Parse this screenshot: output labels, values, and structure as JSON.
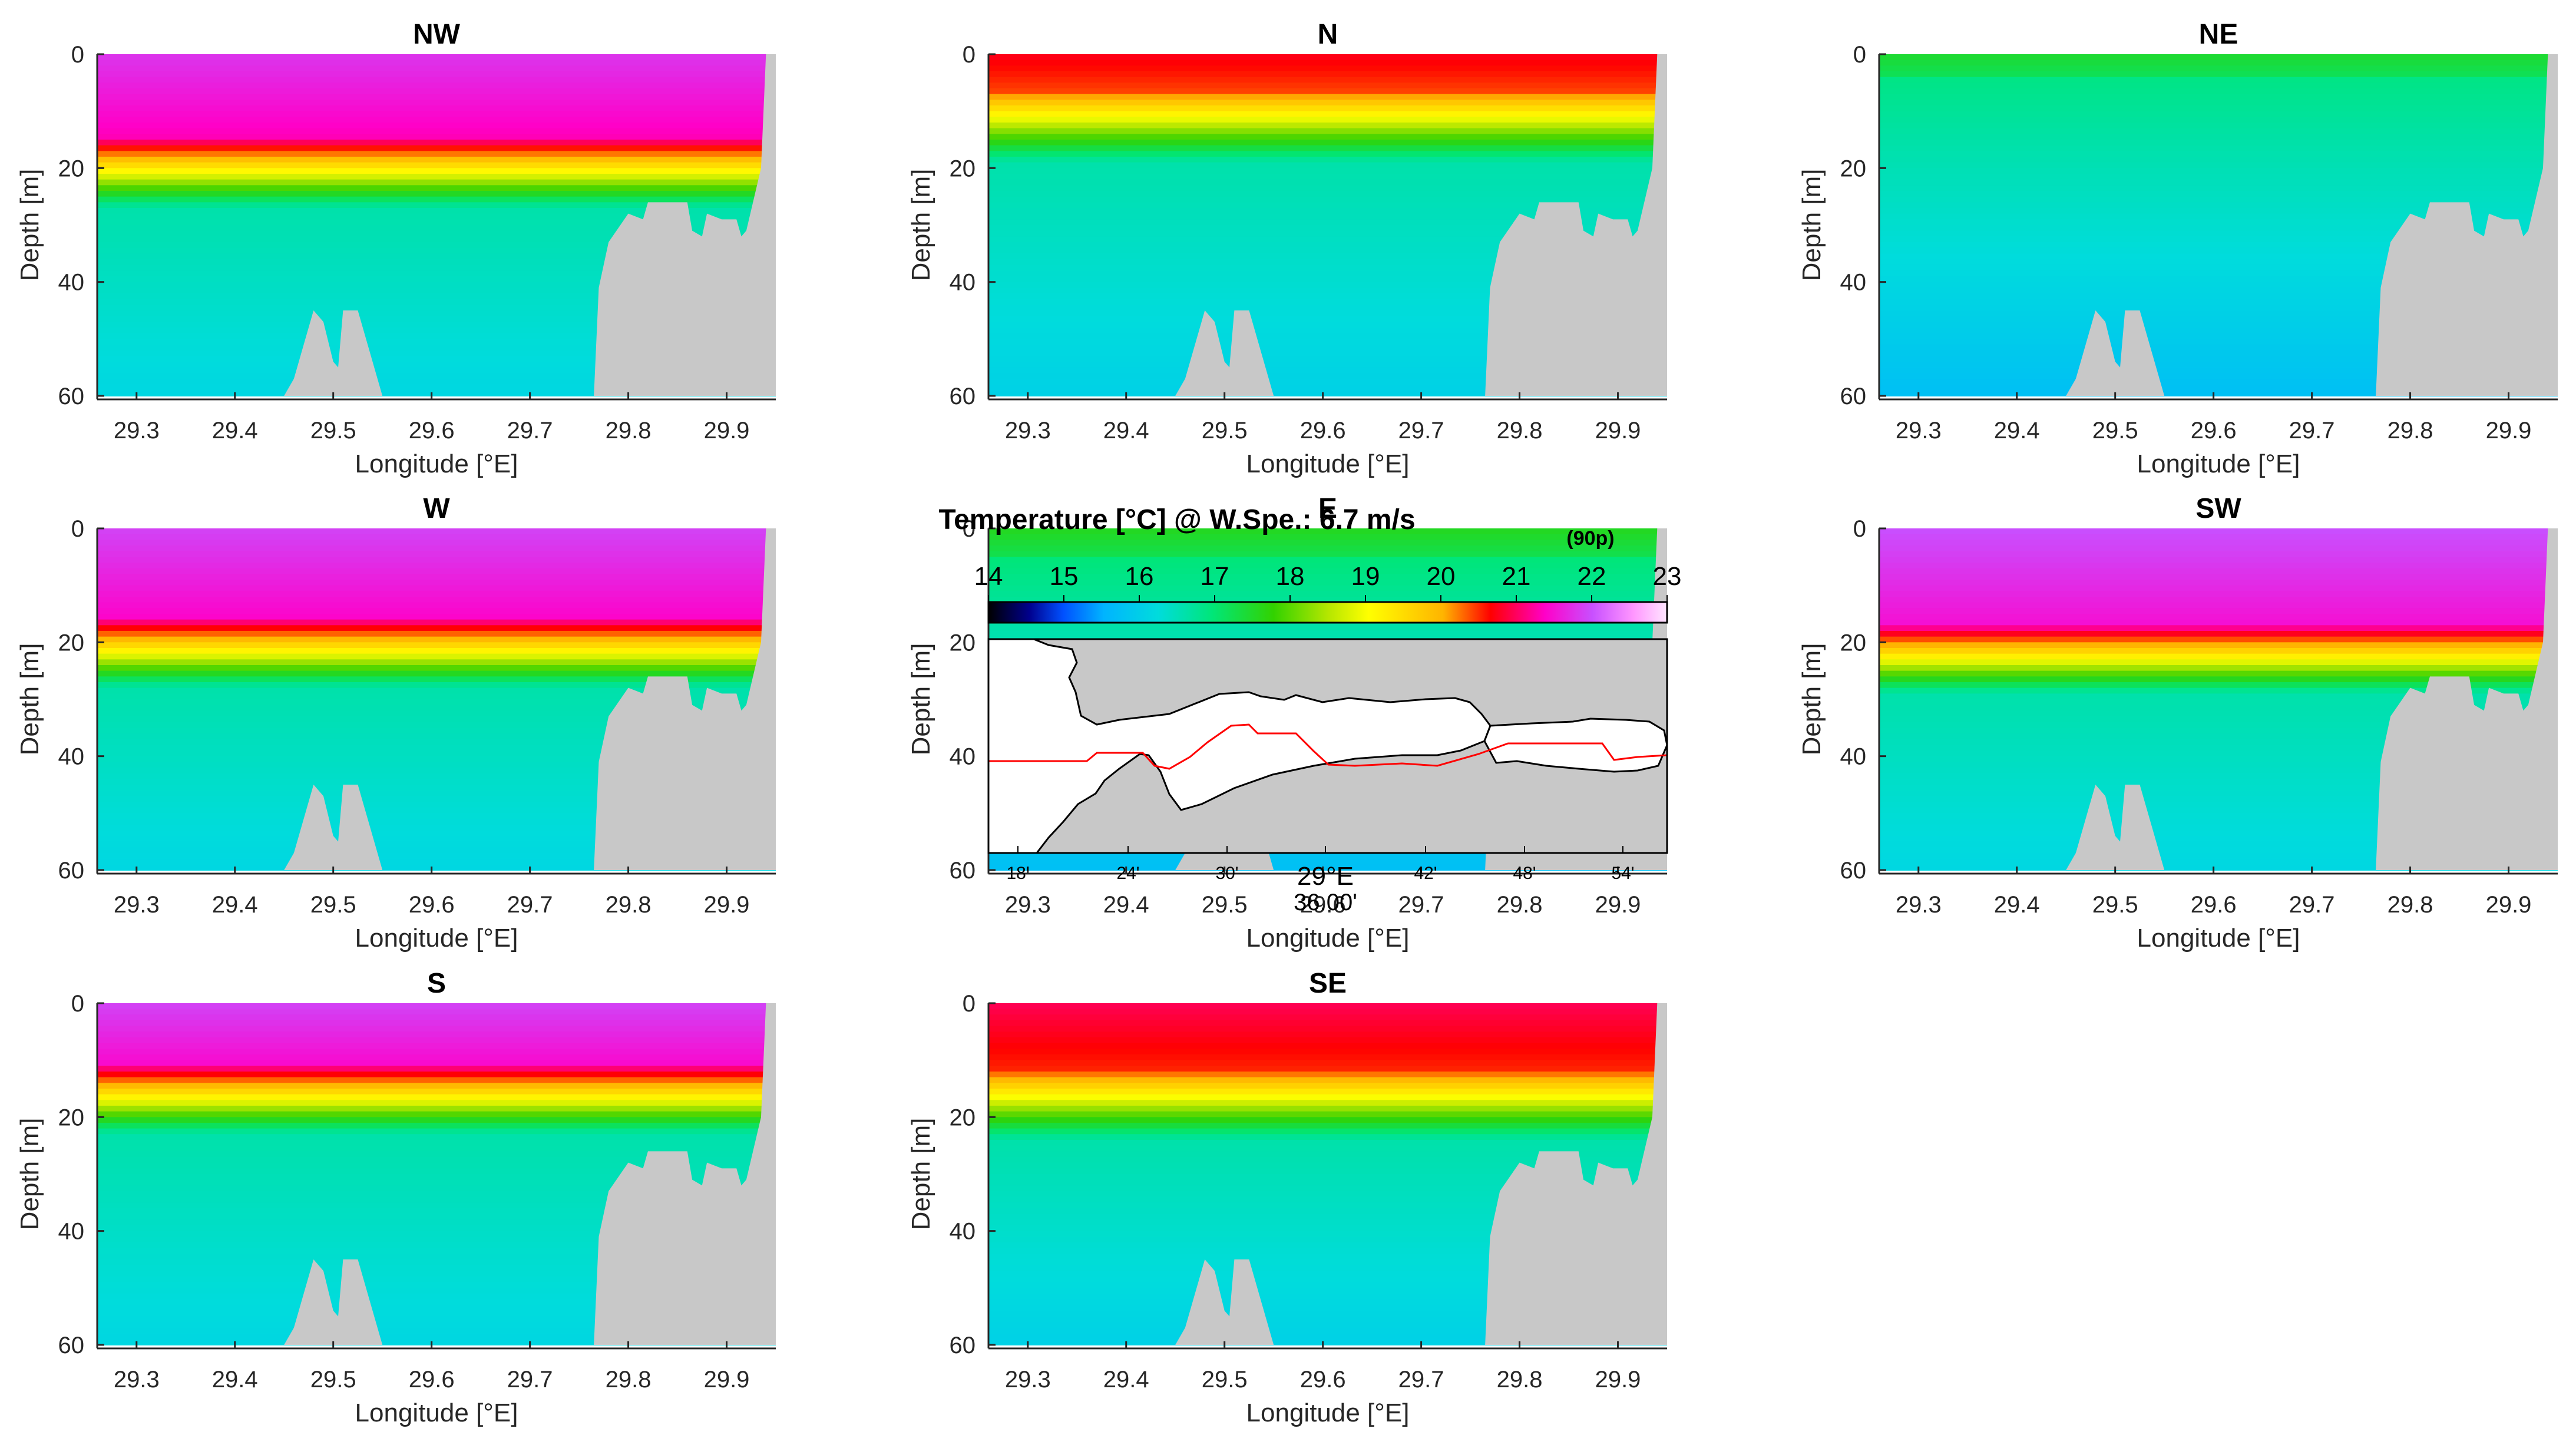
{
  "figure": {
    "colorbar": {
      "title": "Temperature [°C] @ W.Spe.: 6.7 m/s",
      "title_subscript": "(90p)",
      "ticks": [
        "14",
        "15",
        "16",
        "17",
        "18",
        "19",
        "20",
        "21",
        "22",
        "23"
      ],
      "range": [
        14,
        23
      ]
    },
    "map_inset": {
      "x_ticks": [
        "18'",
        "24'",
        "30'",
        "29°E",
        "42'",
        "48'",
        "54'"
      ],
      "x_tick_sub": "36.00'",
      "line_color": "#ff0000",
      "land_color": "#c8c8c8"
    }
  },
  "chart_data": [
    {
      "type": "heatmap",
      "title": "NW",
      "xlabel": "Longitude [°E]",
      "ylabel": "Depth [m]",
      "xlim": [
        29.26,
        29.95
      ],
      "ylim": [
        60,
        0
      ],
      "xticks": [
        "29.3",
        "29.4",
        "29.5",
        "29.6",
        "29.7",
        "29.8",
        "29.9"
      ],
      "yticks": [
        "0",
        "20",
        "40",
        "60"
      ],
      "surface_temp_c": 21.8,
      "thermocline_depth_m": 19,
      "deep_temp_c": 16.1
    },
    {
      "type": "heatmap",
      "title": "N",
      "xlabel": "Longitude [°E]",
      "ylabel": "Depth [m]",
      "xlim": [
        29.26,
        29.95
      ],
      "ylim": [
        60,
        0
      ],
      "xticks": [
        "29.3",
        "29.4",
        "29.5",
        "29.6",
        "29.7",
        "29.8",
        "29.9"
      ],
      "yticks": [
        "0",
        "20",
        "40",
        "60"
      ],
      "surface_temp_c": 20.8,
      "thermocline_depth_m": 11,
      "deep_temp_c": 16.0
    },
    {
      "type": "heatmap",
      "title": "NE",
      "xlabel": "Longitude [°E]",
      "ylabel": "Depth [m]",
      "xlim": [
        29.26,
        29.95
      ],
      "ylim": [
        60,
        0
      ],
      "xticks": [
        "29.3",
        "29.4",
        "29.5",
        "29.6",
        "29.7",
        "29.8",
        "29.9"
      ],
      "yticks": [
        "0",
        "20",
        "40",
        "60"
      ],
      "surface_temp_c": 17.5,
      "thermocline_depth_m": 8,
      "deep_temp_c": 15.7
    },
    {
      "type": "heatmap",
      "title": "W",
      "xlabel": "Longitude [°E]",
      "ylabel": "Depth [m]",
      "xlim": [
        29.26,
        29.95
      ],
      "ylim": [
        60,
        0
      ],
      "xticks": [
        "29.3",
        "29.4",
        "29.5",
        "29.6",
        "29.7",
        "29.8",
        "29.9"
      ],
      "yticks": [
        "0",
        "20",
        "40",
        "60"
      ],
      "surface_temp_c": 21.9,
      "thermocline_depth_m": 20,
      "deep_temp_c": 16.1
    },
    {
      "type": "heatmap",
      "title": "E",
      "xlabel": "Longitude [°E]",
      "ylabel": "Depth [m]",
      "xlim": [
        29.26,
        29.95
      ],
      "ylim": [
        60,
        0
      ],
      "xticks": [
        "29.3",
        "29.4",
        "29.5",
        "29.6",
        "29.7",
        "29.8",
        "29.9"
      ],
      "yticks": [
        "0",
        "20",
        "40",
        "60"
      ],
      "surface_temp_c": 17.6,
      "thermocline_depth_m": 9,
      "deep_temp_c": 15.7
    },
    {
      "type": "heatmap",
      "title": "SW",
      "xlabel": "Longitude [°E]",
      "ylabel": "Depth [m]",
      "xlim": [
        29.26,
        29.95
      ],
      "ylim": [
        60,
        0
      ],
      "xticks": [
        "29.3",
        "29.4",
        "29.5",
        "29.6",
        "29.7",
        "29.8",
        "29.9"
      ],
      "yticks": [
        "0",
        "20",
        "40",
        "60"
      ],
      "surface_temp_c": 22.0,
      "thermocline_depth_m": 21,
      "deep_temp_c": 16.1
    },
    {
      "type": "heatmap",
      "title": "S",
      "xlabel": "Longitude [°E]",
      "ylabel": "Depth [m]",
      "xlim": [
        29.26,
        29.95
      ],
      "ylim": [
        60,
        0
      ],
      "xticks": [
        "29.3",
        "29.4",
        "29.5",
        "29.6",
        "29.7",
        "29.8",
        "29.9"
      ],
      "yticks": [
        "0",
        "20",
        "40",
        "60"
      ],
      "surface_temp_c": 21.9,
      "thermocline_depth_m": 15,
      "deep_temp_c": 16.1
    },
    {
      "type": "heatmap",
      "title": "SE",
      "xlabel": "Longitude [°E]",
      "ylabel": "Depth [m]",
      "xlim": [
        29.26,
        29.95
      ],
      "ylim": [
        60,
        0
      ],
      "xticks": [
        "29.3",
        "29.4",
        "29.5",
        "29.6",
        "29.7",
        "29.8",
        "29.9"
      ],
      "yticks": [
        "0",
        "20",
        "40",
        "60"
      ],
      "surface_temp_c": 21.0,
      "thermocline_depth_m": 16,
      "deep_temp_c": 16.0
    }
  ]
}
